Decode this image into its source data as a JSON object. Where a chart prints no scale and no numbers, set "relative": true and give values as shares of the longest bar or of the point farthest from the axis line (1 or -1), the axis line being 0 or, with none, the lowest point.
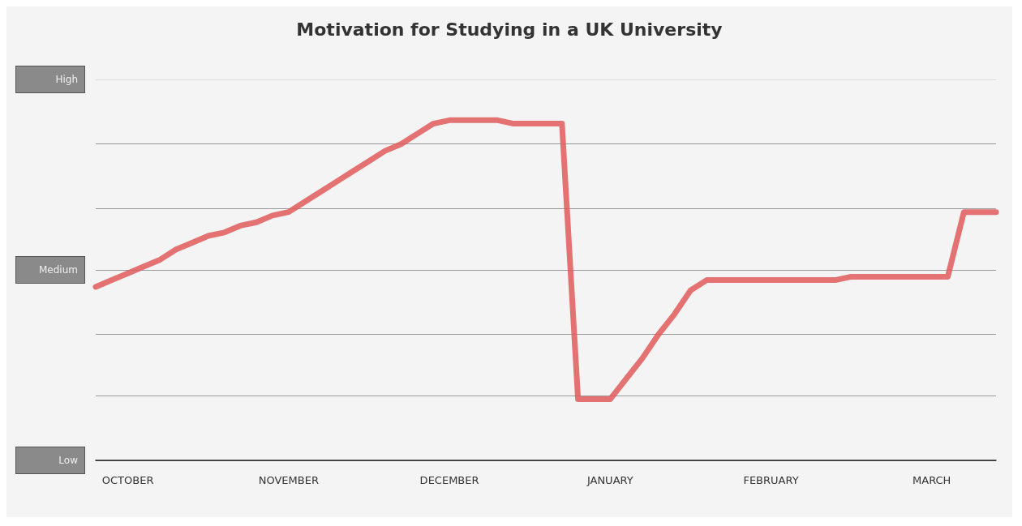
{
  "chart_data": {
    "type": "line",
    "title": "Motivation for Studying in a UK University",
    "relative": true,
    "categories": [
      null,
      null,
      "OCTOBER",
      null,
      null,
      null,
      null,
      null,
      null,
      null,
      null,
      null,
      "NOVEMBER",
      null,
      null,
      null,
      null,
      null,
      null,
      null,
      null,
      null,
      "DECEMBER",
      null,
      null,
      null,
      null,
      null,
      null,
      null,
      null,
      null,
      "JANUARY",
      null,
      null,
      null,
      null,
      null,
      null,
      null,
      null,
      null,
      "FEBRUARY",
      null,
      null,
      null,
      null,
      null,
      null,
      null,
      null,
      null,
      "MARCH",
      null,
      null,
      null,
      null
    ],
    "values": [
      0.51,
      0.53,
      0.55,
      0.57,
      0.59,
      0.62,
      0.64,
      0.66,
      0.67,
      0.69,
      0.7,
      0.72,
      0.73,
      0.76,
      0.79,
      0.82,
      0.85,
      0.88,
      0.91,
      0.93,
      0.96,
      0.99,
      1,
      1,
      1,
      1,
      0.99,
      0.99,
      0.99,
      0.99,
      0.18,
      0.18,
      0.18,
      0.24,
      0.3,
      0.37,
      0.43,
      0.5,
      0.53,
      0.53,
      0.53,
      0.53,
      0.53,
      0.53,
      0.53,
      0.53,
      0.53,
      0.54,
      0.54,
      0.54,
      0.54,
      0.54,
      0.54,
      0.54,
      0.73,
      0.73,
      0.73
    ],
    "color": "#e05a5a",
    "marker": "none",
    "line_style": "solid",
    "ref_lines": [
      {
        "axis": "y",
        "value": 0,
        "label": "Low",
        "color": "#333333"
      },
      {
        "axis": "y",
        "value": 0.19,
        "label": null,
        "color": "#999999"
      },
      {
        "axis": "y",
        "value": 0.37,
        "label": null,
        "color": "#999999"
      },
      {
        "axis": "y",
        "value": 0.56,
        "label": "Medium",
        "color": "#999999"
      },
      {
        "axis": "y",
        "value": 0.74,
        "label": null,
        "color": "#999999"
      },
      {
        "axis": "y",
        "value": 0.93,
        "label": null,
        "color": "#999999"
      },
      {
        "axis": "y",
        "value": 1.12,
        "label": "High",
        "color": "#dddddd"
      }
    ]
  }
}
